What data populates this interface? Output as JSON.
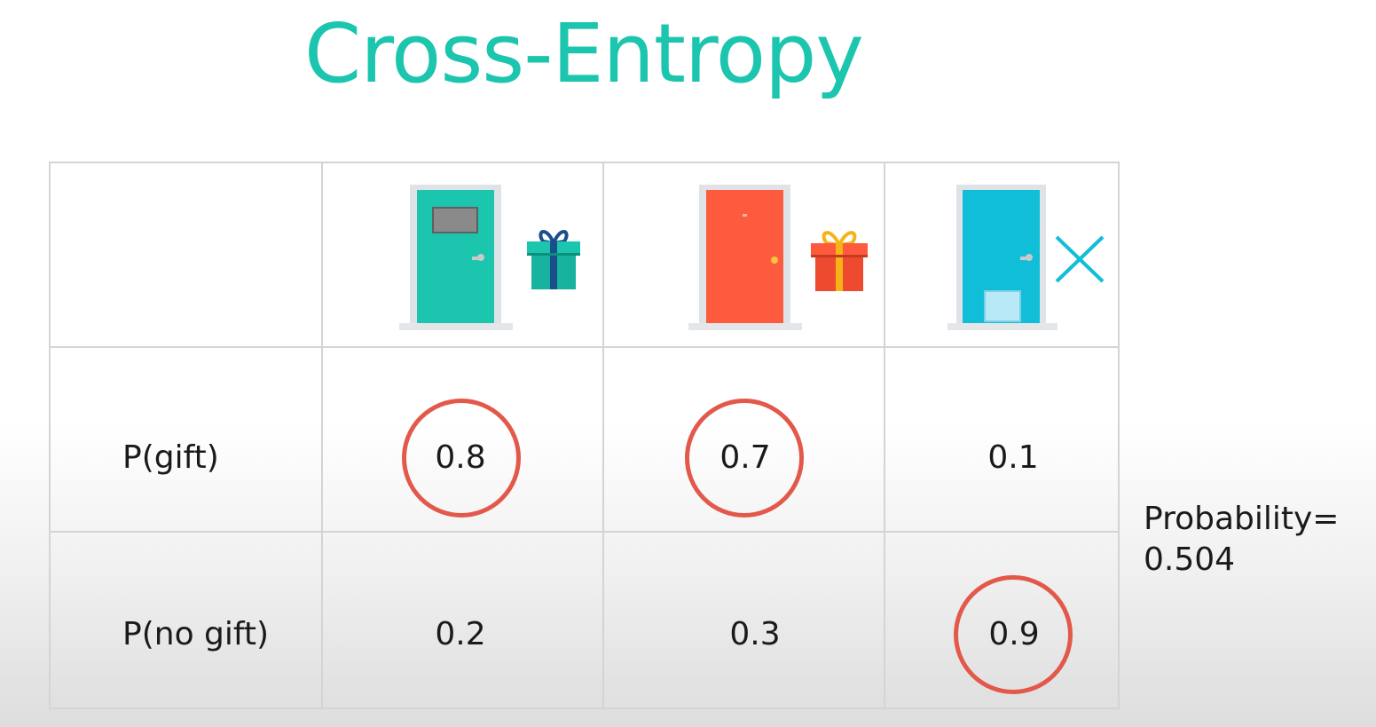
{
  "title": "Cross-Entropy",
  "rows": [
    {
      "label": "P(gift)",
      "values": [
        "0.8",
        "0.7",
        "0.1"
      ]
    },
    {
      "label": "P(no gift)",
      "values": [
        "0.2",
        "0.3",
        "0.9"
      ]
    }
  ],
  "columns": [
    {
      "door": "green-door-icon",
      "door_color": "#1cc5ae",
      "outcome": "gift-icon",
      "gift_color": "#1cc5ae"
    },
    {
      "door": "red-door-icon",
      "door_color": "#fd5a3e",
      "outcome": "gift-icon",
      "gift_color": "#fd5a3e"
    },
    {
      "door": "blue-door-icon",
      "door_color": "#10bed8",
      "outcome": "x-icon"
    }
  ],
  "circled": [
    "0.8",
    "0.7",
    "0.9"
  ],
  "ring_color": "#e2594b",
  "result": {
    "line1": "Probability=",
    "line2": "0.504"
  }
}
